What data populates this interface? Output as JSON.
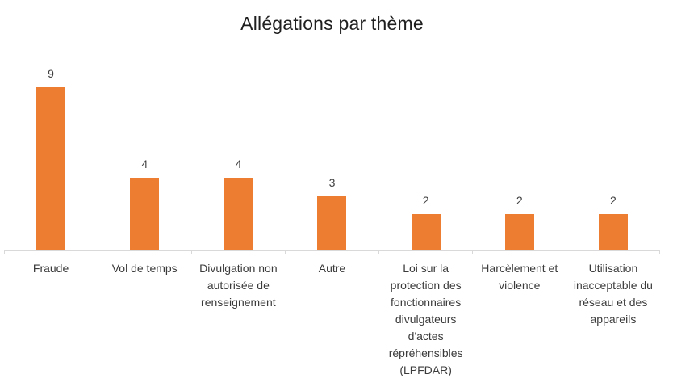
{
  "title": "Allégations par thème",
  "colors": {
    "bar": "#ED7D31",
    "axis_line": "#D9D9D9",
    "value_label_text": "#404040",
    "category_label_text": "#3B3B3B",
    "title_text": "#1F1F1F",
    "background": "#FFFFFF"
  },
  "chart_data": {
    "type": "bar",
    "title": "Allégations par thème",
    "categories": [
      "Fraude",
      "Vol de temps",
      "Divulgation non autorisée de renseignement",
      "Autre",
      "Loi sur la protection des fonctionnaires divulgateurs d'actes répréhensibles (LPFDAR)",
      "Harcèlement et violence",
      "Utilisation inacceptable du réseau et des appareils"
    ],
    "values": [
      9,
      4,
      4,
      3,
      2,
      2,
      2
    ],
    "data_labels": [
      "9",
      "4",
      "4",
      "3",
      "2",
      "2",
      "2"
    ],
    "xlabel": "",
    "ylabel": "",
    "ylim": [
      0,
      9
    ],
    "grid": false,
    "legend": false,
    "y_axis_visible": false,
    "bar_color": "#ED7D31"
  }
}
